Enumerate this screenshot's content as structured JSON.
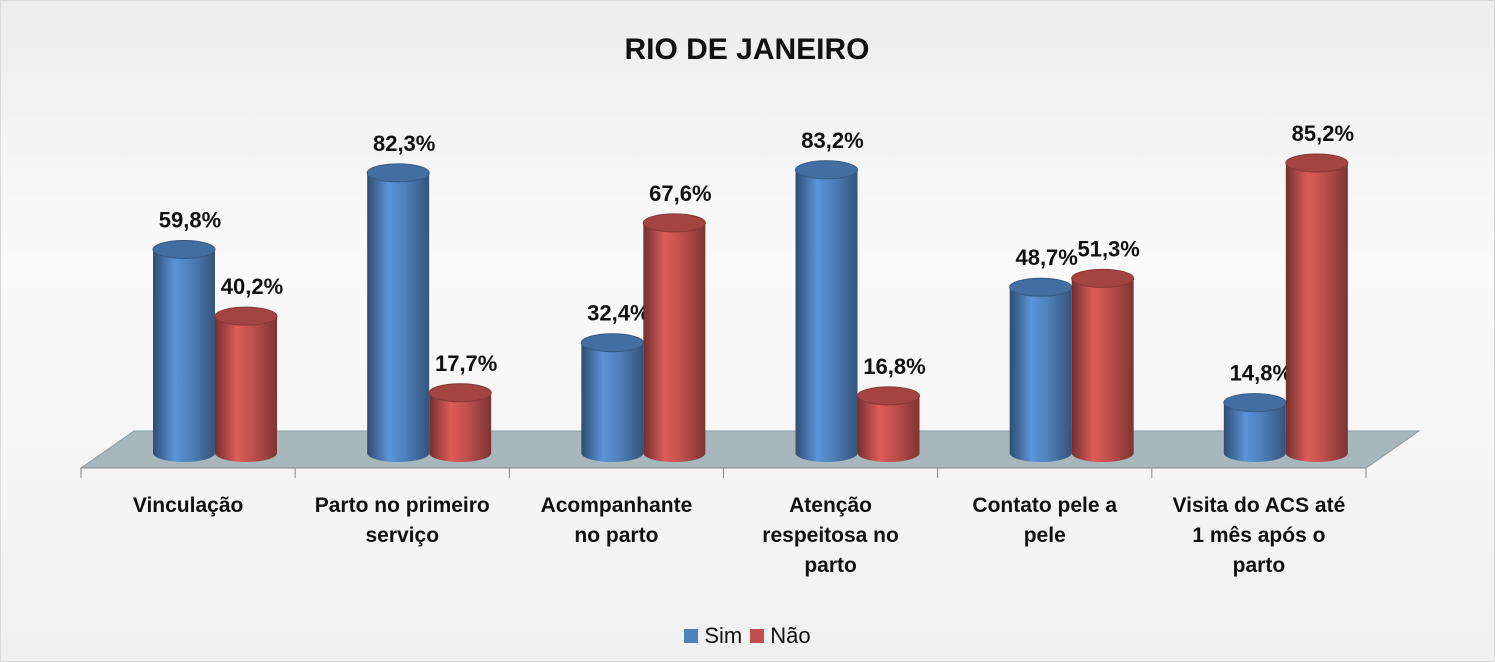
{
  "chart_data": {
    "type": "bar3d",
    "title": "RIO DE JANEIRO",
    "categories": [
      "Vinculação",
      "Parto no primeiro serviço",
      "Acompanhante no parto",
      "Atenção respeitosa no parto",
      "Contato pele a pele",
      "Visita do ACS até 1 mês após o parto"
    ],
    "series": [
      {
        "name": "Sim",
        "color": "#4f81bd",
        "values": [
          59.8,
          82.3,
          32.4,
          83.2,
          48.7,
          14.8
        ],
        "value_labels": [
          "59,8%",
          "82,3%",
          "32,4%",
          "83,2%",
          "48,7%",
          "14,8%"
        ]
      },
      {
        "name": "Não",
        "color": "#c0504d",
        "values": [
          40.2,
          17.7,
          67.6,
          16.8,
          51.3,
          85.2
        ],
        "value_labels": [
          "40,2%",
          "17,7%",
          "67,6%",
          "16,8%",
          "51,3%",
          "85,2%"
        ]
      }
    ],
    "legend": "bottom"
  }
}
